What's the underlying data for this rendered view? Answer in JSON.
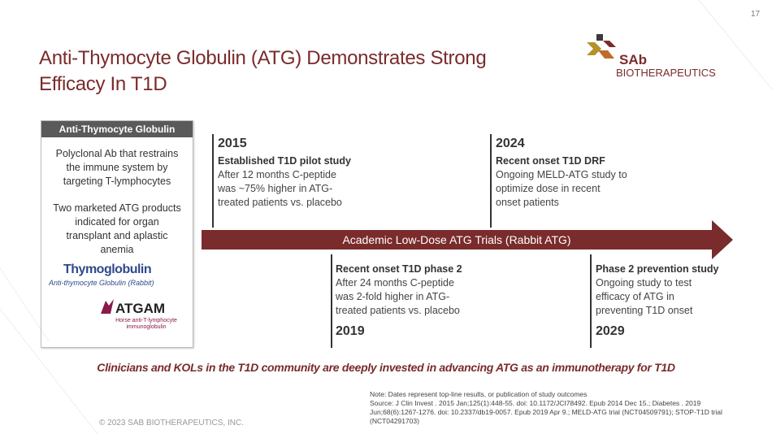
{
  "page_number": "17",
  "header": {
    "title_lines": [
      "Anti-Thymocyte Globulin (ATG) Demonstrates Strong",
      "Efficacy In T1D"
    ]
  },
  "logo": {
    "mark": "SAb",
    "name": "BIOTHERAPEUTICS"
  },
  "sidebar": {
    "title": "Anti-Thymocyte Globulin",
    "paragraphs": [
      [
        "Polyclonal Ab that restrains",
        "the immune system by",
        "targeting T-lymphocytes"
      ],
      [
        "Two marketed ATG products",
        "indicated for organ",
        "transplant and aplastic",
        "anemia"
      ]
    ],
    "products": [
      {
        "name": "Thymoglobulin",
        "subtitle_lines": [
          "Anti-thymocyte Globulin (Rabbit)"
        ]
      },
      {
        "name": "ATGAM",
        "subtitle_lines": [
          "Horse anti-T-lymphocyte",
          "immunoglobulin"
        ]
      }
    ]
  },
  "timeline": {
    "label": "Academic Low-Dose ATG Trials (Rabbit ATG)",
    "events": [
      {
        "year": "2015",
        "title": "Established T1D pilot study",
        "lines": [
          "After 12 months C-peptide",
          "was ~75% higher in ATG-",
          "treated patients vs. placebo"
        ]
      },
      {
        "year": "2024",
        "title": "Recent onset T1D DRF",
        "lines": [
          "Ongoing MELD-ATG study to",
          "optimize dose in recent",
          "onset patients"
        ]
      },
      {
        "year": "2019",
        "title": "Recent onset T1D phase 2",
        "lines": [
          "After 24 months C-peptide",
          "was 2-fold higher in ATG-",
          "treated patients vs. placebo"
        ]
      },
      {
        "year": "2029",
        "title": "Phase 2 prevention study",
        "lines": [
          "Ongoing study to test",
          "efficacy of ATG in",
          "preventing T1D onset"
        ]
      }
    ]
  },
  "takeaway": "Clinicians and KOLs in the T1D community are deeply invested in advancing ATG as an immunotherapy for T1D",
  "note": {
    "lines": [
      "Note: Dates represent top-line results, or publication of study outcomes",
      "Source: J Clin Invest . 2015 Jan;125(1):448-55. doi: 10.1172/JCI78492. Epub 2014 Dec 15.; Diabetes . 2019",
      "Jun;68(6):1267-1276. doi: 10.2337/db19-0057. Epub 2019 Apr 9.; MELD-ATG trial (NCT04509791); STOP-T1D  trial",
      "(NCT04291703)"
    ]
  },
  "footer": "© 2023 SAB BIOTHERAPEUTICS, INC."
}
